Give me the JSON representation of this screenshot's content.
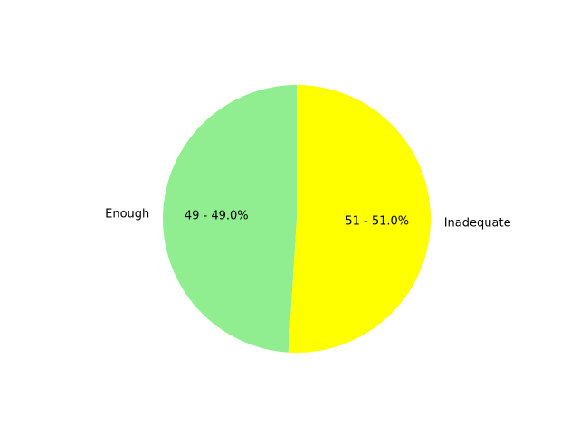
{
  "chart_data": {
    "type": "pie",
    "slices": [
      {
        "label": "Enough",
        "value": 49,
        "percent": 49.0,
        "color": "#90ee90",
        "pct_label": "49 - 49.0%"
      },
      {
        "label": "Inadequate",
        "value": 51,
        "percent": 51.0,
        "color": "#ffff00",
        "pct_label": "51 - 51.0%"
      }
    ],
    "start_angle_deg": 90,
    "direction": "counterclockwise"
  }
}
